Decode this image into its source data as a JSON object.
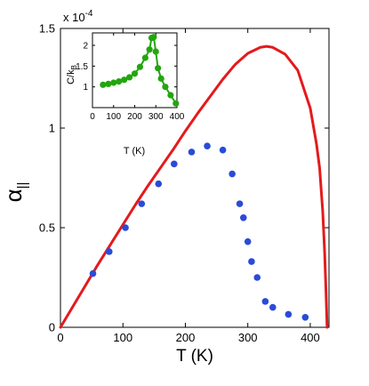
{
  "chart_data": [
    {
      "type": "scatter",
      "role": "main",
      "xlabel": "T (K)",
      "ylabel": "α||",
      "ylabel_main": "α",
      "ylabel_sub": "||",
      "y_multiplier_label": "x 10",
      "y_multiplier_exponent": "-4",
      "xlim": [
        0,
        430
      ],
      "ylim": [
        0,
        1.5
      ],
      "x_ticks": [
        0,
        100,
        200,
        300,
        400
      ],
      "x_tick_labels": [
        "0",
        "100",
        "200",
        "300",
        "400"
      ],
      "y_ticks": [
        0,
        0.5,
        1,
        1.5
      ],
      "y_tick_labels": [
        "0",
        "0.5",
        "1",
        "1.5"
      ],
      "grid": false,
      "legend": "none",
      "series": [
        {
          "kind": "line",
          "color": "#e41a1c",
          "x": [
            0,
            20,
            40,
            60,
            80,
            100,
            120,
            140,
            160,
            180,
            200,
            220,
            240,
            260,
            280,
            300,
            320,
            330,
            340,
            360,
            380,
            400,
            410,
            415,
            420,
            423,
            425,
            427
          ],
          "y": [
            0,
            0.105,
            0.21,
            0.315,
            0.415,
            0.515,
            0.615,
            0.71,
            0.8,
            0.89,
            0.985,
            1.075,
            1.16,
            1.245,
            1.32,
            1.375,
            1.405,
            1.41,
            1.405,
            1.37,
            1.29,
            1.1,
            0.92,
            0.8,
            0.58,
            0.38,
            0.2,
            0
          ]
        },
        {
          "kind": "scatter",
          "color": "#2a4bd7",
          "x": [
            52,
            78,
            104,
            130,
            157,
            182,
            210,
            235,
            260,
            275,
            287,
            293,
            300,
            306,
            315,
            328,
            340,
            365,
            392
          ],
          "y": [
            0.27,
            0.38,
            0.5,
            0.62,
            0.72,
            0.82,
            0.88,
            0.91,
            0.89,
            0.77,
            0.62,
            0.55,
            0.43,
            0.33,
            0.25,
            0.13,
            0.1,
            0.065,
            0.05
          ]
        }
      ]
    },
    {
      "type": "line",
      "role": "inset",
      "xlabel": "T (K)",
      "ylabel": "C/k_B",
      "ylabel_main": "C/k",
      "ylabel_sub": "B",
      "xlim": [
        0,
        400
      ],
      "ylim": [
        0.5,
        2.3
      ],
      "x_ticks": [
        0,
        100,
        200,
        300,
        400
      ],
      "x_tick_labels": [
        "0",
        "100",
        "200",
        "300",
        "400"
      ],
      "y_ticks": [
        1,
        1.5,
        2
      ],
      "y_tick_labels": [
        "1",
        "1.5",
        "2"
      ],
      "grid": false,
      "legend": "none",
      "series": [
        {
          "kind": "line+markers",
          "color": "#22a60e",
          "x": [
            50,
            75,
            100,
            125,
            150,
            175,
            200,
            225,
            250,
            270,
            280,
            290,
            300,
            310,
            325,
            345,
            370,
            395
          ],
          "y": [
            1.05,
            1.07,
            1.1,
            1.13,
            1.17,
            1.23,
            1.32,
            1.48,
            1.7,
            1.9,
            2.18,
            2.2,
            1.85,
            1.45,
            1.2,
            1.0,
            0.8,
            0.6
          ]
        }
      ]
    }
  ]
}
